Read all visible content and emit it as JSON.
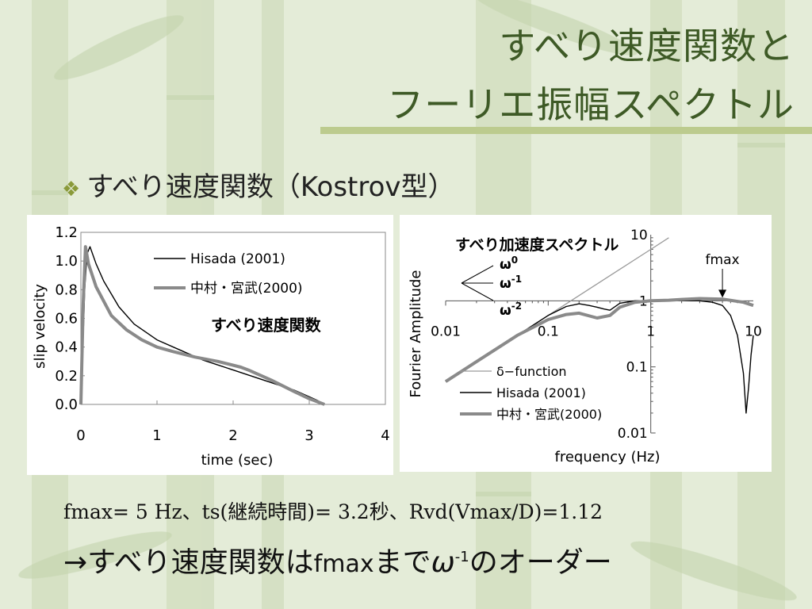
{
  "slide": {
    "title_line1": "すべり速度関数と",
    "title_line2": "フーリエ振幅スペクトル",
    "bullet": {
      "mark": "❖",
      "text": "すべり速度関数（Kostrov型）"
    },
    "note1": "fmax= 5 Hz、ts(継続時間)= 3.2秒、Rvd(Vmax/D)=1.12",
    "note2": {
      "prefix": "→すべり速度関数は",
      "fmax": "fmax",
      "mid": "まで",
      "omega": "ω",
      "exp": "-1",
      "suffix": "のオーダー"
    },
    "colors": {
      "title": "#3e5a26",
      "rule": "#bccb8e",
      "background": "#e4ecd8",
      "series_black": "#000000",
      "series_gray": "#8a8a8a",
      "series_lightgray": "#9a9a9a"
    }
  },
  "chart_data": [
    {
      "type": "line",
      "title": "すべり速度関数",
      "xlabel": "time (sec)",
      "ylabel": "slip velocity",
      "xlim": [
        0,
        4
      ],
      "ylim": [
        0,
        1.2
      ],
      "xticks": [
        "0",
        "1",
        "2",
        "3",
        "4"
      ],
      "yticks": [
        "0.0",
        "0.2",
        "0.4",
        "0.6",
        "0.8",
        "1.0",
        "1.2"
      ],
      "grid": false,
      "legend_position": "top-center",
      "series": [
        {
          "name": "Hisada (2001)",
          "color": "#000000",
          "x": [
            0,
            0.02,
            0.05,
            0.08,
            0.12,
            0.2,
            0.3,
            0.5,
            0.7,
            1.0,
            1.3,
            1.6,
            2.0,
            2.4,
            2.8,
            3.1,
            3.2
          ],
          "y": [
            0,
            0.3,
            0.8,
            1.05,
            1.1,
            0.98,
            0.86,
            0.68,
            0.56,
            0.45,
            0.38,
            0.31,
            0.24,
            0.17,
            0.1,
            0.03,
            0
          ]
        },
        {
          "name": "中村・宮武(2000)",
          "color": "#8a8a8a",
          "x": [
            0,
            0.03,
            0.06,
            0.1,
            0.2,
            0.4,
            0.6,
            0.8,
            1.0,
            1.2,
            1.5,
            1.8,
            2.1,
            2.2,
            2.5,
            2.8,
            3.0,
            3.2
          ],
          "y": [
            0,
            0.7,
            1.1,
            0.98,
            0.82,
            0.62,
            0.52,
            0.45,
            0.4,
            0.37,
            0.33,
            0.3,
            0.26,
            0.24,
            0.17,
            0.09,
            0.04,
            0
          ]
        }
      ]
    },
    {
      "type": "line",
      "title": "すべり加速度スペクトル",
      "xlabel": "frequency (Hz)",
      "ylabel": "Fourier Amplitude",
      "xscale": "log",
      "yscale": "log",
      "xlim": [
        0.01,
        10
      ],
      "ylim": [
        0.01,
        10
      ],
      "xticks": [
        "0.01",
        "0.1",
        "1",
        "10"
      ],
      "yticks": [
        "0.01",
        "0.1",
        "1",
        "10"
      ],
      "grid": false,
      "legend_position": "bottom-left",
      "annotations": [
        {
          "text": "fmax",
          "x": 5,
          "y": 1
        }
      ],
      "slope_labels": [
        {
          "omega": "ω",
          "exp": "0"
        },
        {
          "omega": "ω",
          "exp": "-1"
        },
        {
          "omega": "ω",
          "exp": "-2"
        }
      ],
      "series": [
        {
          "name": "δ−function",
          "color": "#9a9a9a",
          "x": [
            0.01,
            0.02,
            0.05,
            0.1,
            0.2,
            0.5,
            1,
            1.5
          ],
          "y": [
            0.06,
            0.12,
            0.3,
            0.6,
            1.2,
            3,
            6,
            9
          ]
        },
        {
          "name": "Hisada (2001)",
          "color": "#000000",
          "x": [
            0.01,
            0.02,
            0.05,
            0.1,
            0.15,
            0.2,
            0.25,
            0.3,
            0.35,
            0.4,
            0.5,
            0.7,
            1.0,
            1.5,
            2.0,
            3.0,
            4.0,
            5.0,
            6.0,
            7.0,
            8.0,
            8.5,
            9.0,
            9.5,
            10.0
          ],
          "y": [
            0.06,
            0.12,
            0.3,
            0.6,
            0.82,
            0.9,
            0.85,
            0.8,
            0.75,
            0.72,
            0.92,
            1.0,
            1.0,
            1.0,
            1.0,
            1.0,
            0.95,
            0.85,
            0.6,
            0.3,
            0.08,
            0.02,
            0.05,
            0.15,
            0.3
          ]
        },
        {
          "name": "中村・宮武(2000)",
          "color": "#8a8a8a",
          "x": [
            0.01,
            0.02,
            0.05,
            0.1,
            0.15,
            0.2,
            0.3,
            0.4,
            0.5,
            0.7,
            1.0,
            1.5,
            2.0,
            3.0,
            5.0,
            8.0,
            10.0
          ],
          "y": [
            0.06,
            0.12,
            0.3,
            0.52,
            0.62,
            0.65,
            0.55,
            0.6,
            0.8,
            0.95,
            1.0,
            1.02,
            1.05,
            1.08,
            1.06,
            0.95,
            0.85
          ]
        }
      ]
    }
  ]
}
